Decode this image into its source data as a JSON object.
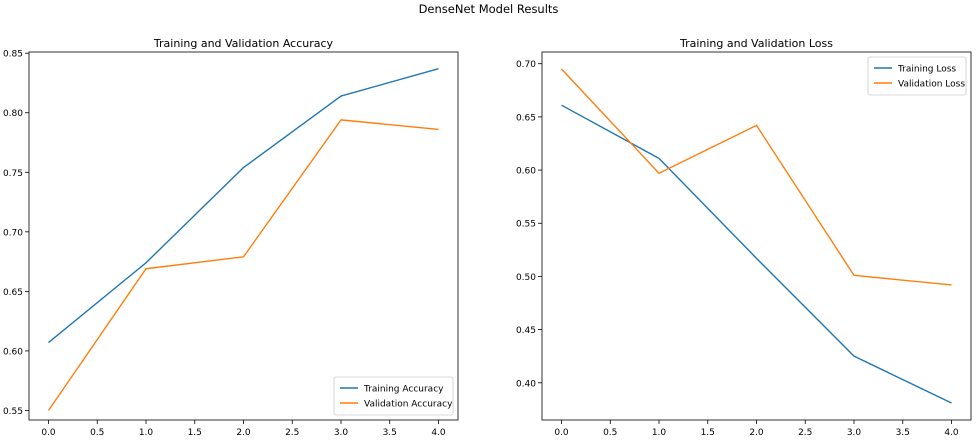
{
  "figure": {
    "suptitle": "DenseNet Model Results"
  },
  "colors": {
    "series1": "#1f77b4",
    "series2": "#ff7f0e"
  },
  "chart_data": [
    {
      "type": "line",
      "title": "Training and Validation Accuracy",
      "xlabel": "",
      "ylabel": "",
      "x": [
        0,
        1,
        2,
        3,
        4
      ],
      "xlim": [
        -0.2,
        4.2
      ],
      "ylim": [
        0.542,
        0.851
      ],
      "xticks": [
        0.0,
        0.5,
        1.0,
        1.5,
        2.0,
        2.5,
        3.0,
        3.5,
        4.0
      ],
      "xtick_labels": [
        "0.0",
        "0.5",
        "1.0",
        "1.5",
        "2.0",
        "2.5",
        "3.0",
        "3.5",
        "4.0"
      ],
      "yticks": [
        0.55,
        0.6,
        0.65,
        0.7,
        0.75,
        0.8,
        0.85
      ],
      "ytick_labels": [
        "0.55",
        "0.60",
        "0.65",
        "0.70",
        "0.75",
        "0.80",
        "0.85"
      ],
      "grid": false,
      "legend_position": "lower-right",
      "series": [
        {
          "name": "Training Accuracy",
          "color": "#1f77b4",
          "values": [
            0.607,
            0.674,
            0.754,
            0.814,
            0.837
          ]
        },
        {
          "name": "Validation Accuracy",
          "color": "#ff7f0e",
          "values": [
            0.55,
            0.669,
            0.679,
            0.794,
            0.786
          ]
        }
      ]
    },
    {
      "type": "line",
      "title": "Training and Validation Loss",
      "xlabel": "",
      "ylabel": "",
      "x": [
        0,
        1,
        2,
        3,
        4
      ],
      "xlim": [
        -0.2,
        4.2
      ],
      "ylim": [
        0.365,
        0.711
      ],
      "xticks": [
        0.0,
        0.5,
        1.0,
        1.5,
        2.0,
        2.5,
        3.0,
        3.5,
        4.0
      ],
      "xtick_labels": [
        "0.0",
        "0.5",
        "1.0",
        "1.5",
        "2.0",
        "2.5",
        "3.0",
        "3.5",
        "4.0"
      ],
      "yticks": [
        0.4,
        0.45,
        0.5,
        0.55,
        0.6,
        0.65,
        0.7
      ],
      "ytick_labels": [
        "0.40",
        "0.45",
        "0.50",
        "0.55",
        "0.60",
        "0.65",
        "0.70"
      ],
      "grid": false,
      "legend_position": "upper-right",
      "series": [
        {
          "name": "Training Loss",
          "color": "#1f77b4",
          "values": [
            0.661,
            0.611,
            0.517,
            0.425,
            0.381
          ]
        },
        {
          "name": "Validation Loss",
          "color": "#ff7f0e",
          "values": [
            0.695,
            0.597,
            0.642,
            0.501,
            0.492
          ]
        }
      ]
    }
  ]
}
